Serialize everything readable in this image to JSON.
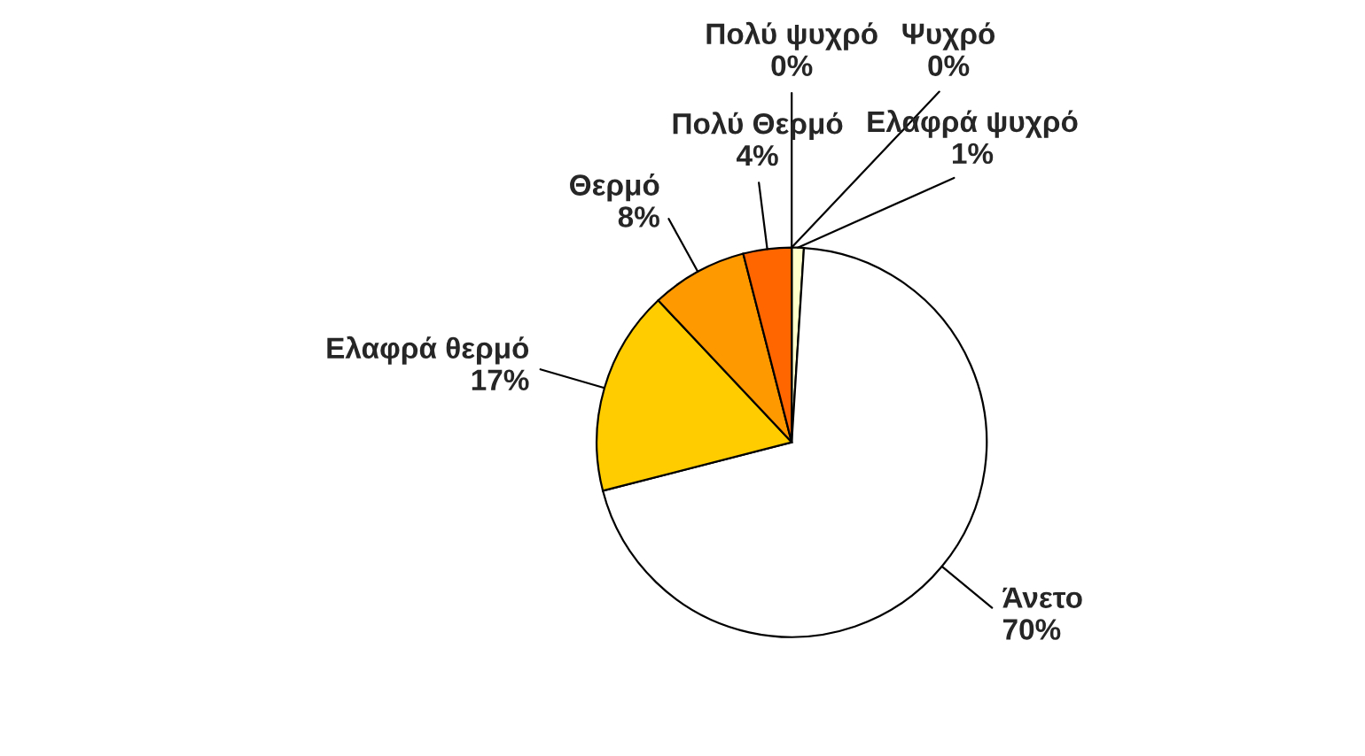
{
  "chart_data": {
    "type": "pie",
    "categories": [
      "Πολύ ψυχρό",
      "Ψυχρό",
      "Ελαφρά ψυχρό",
      "Άνετο",
      "Ελαφρά θερμό",
      "Θερμό",
      "Πολύ Θερμό"
    ],
    "values": [
      0,
      0,
      1,
      70,
      17,
      8,
      4
    ],
    "colors": [
      "#ccecff",
      "#99ccff",
      "#ffffcc",
      "#ffffff",
      "#ffcc00",
      "#ff9900",
      "#ff6600"
    ],
    "value_labels": [
      "0%",
      "0%",
      "1%",
      "70%",
      "17%",
      "8%",
      "4%"
    ]
  }
}
